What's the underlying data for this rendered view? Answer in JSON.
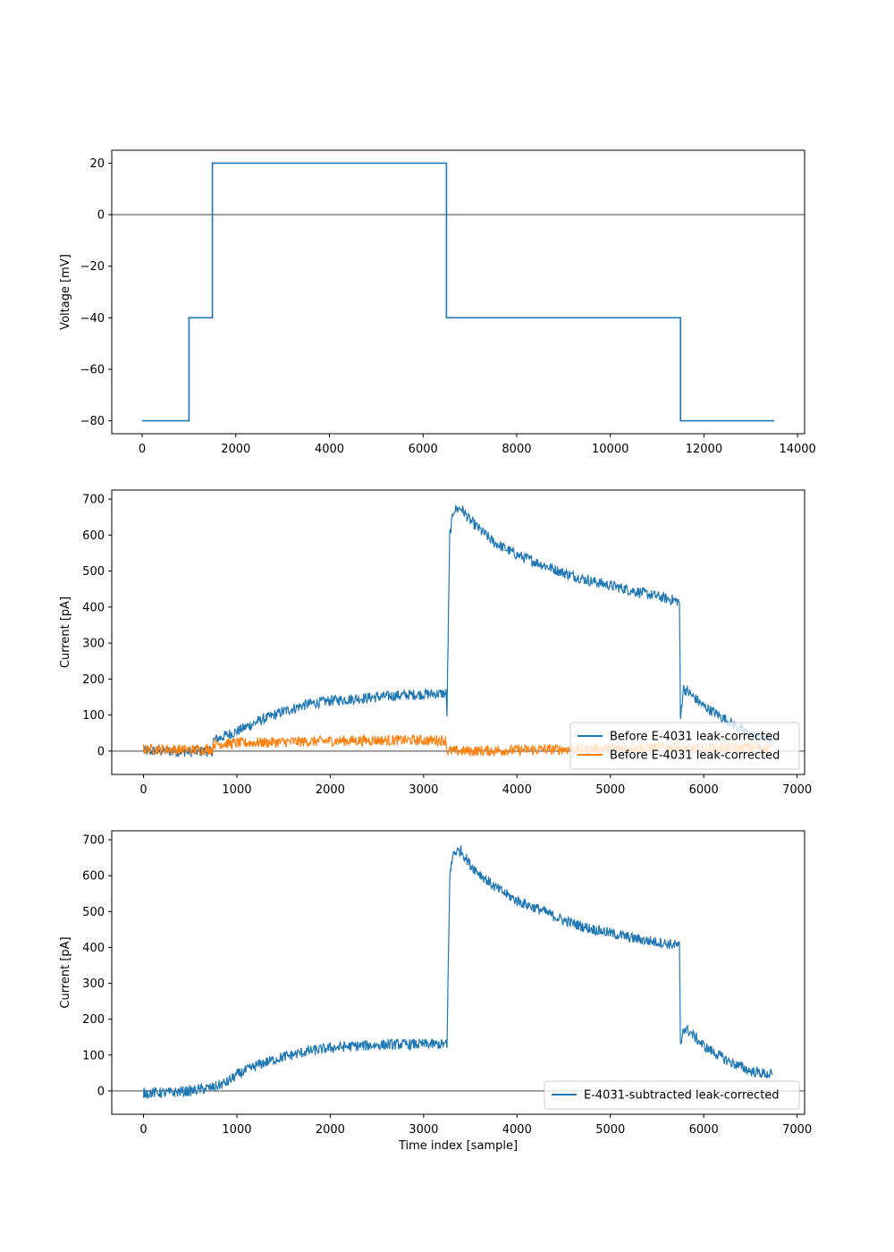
{
  "colors": {
    "blue": "#1f77b4",
    "orange": "#ff7f0e",
    "zero_line": "#808080"
  },
  "chart_data": [
    {
      "type": "line",
      "ylabel": "Voltage [mV]",
      "xlabel": "",
      "xlim": [
        -650,
        14150
      ],
      "ylim": [
        -85,
        25
      ],
      "xticks": [
        0,
        2000,
        4000,
        6000,
        8000,
        10000,
        12000,
        14000
      ],
      "xtick_labels": [
        "0",
        "2000",
        "4000",
        "6000",
        "8000",
        "10000",
        "12000",
        "14000"
      ],
      "yticks": [
        -80,
        -60,
        -40,
        -20,
        0,
        20
      ],
      "ytick_labels": [
        "−80",
        "−60",
        "−40",
        "−20",
        "0",
        "20"
      ],
      "zero_line": true,
      "legend": null,
      "series": [
        {
          "color": "#1f77b4",
          "step": true,
          "x": [
            0,
            1000,
            1000,
            1500,
            1500,
            6500,
            6500,
            11500,
            11500,
            13500
          ],
          "y": [
            -80,
            -80,
            -40,
            -40,
            20,
            20,
            -40,
            -40,
            -80,
            -80
          ]
        }
      ]
    },
    {
      "type": "line",
      "ylabel": "Current [pA]",
      "xlabel": "",
      "xlim": [
        -340,
        7080
      ],
      "ylim": [
        -65,
        725
      ],
      "xticks": [
        0,
        1000,
        2000,
        3000,
        4000,
        5000,
        6000,
        7000
      ],
      "xtick_labels": [
        "0",
        "1000",
        "2000",
        "3000",
        "4000",
        "5000",
        "6000",
        "7000"
      ],
      "yticks": [
        0,
        100,
        200,
        300,
        400,
        500,
        600,
        700
      ],
      "ytick_labels": [
        "0",
        "100",
        "200",
        "300",
        "400",
        "500",
        "600",
        "700"
      ],
      "zero_line": true,
      "legend": {
        "placement": "lower-right",
        "entries": [
          "Before E-4031 leak-corrected",
          "Before E-4031 leak-corrected"
        ]
      },
      "series": [
        {
          "name": "Before E-4031 leak-corrected",
          "color": "#1f77b4",
          "x": [
            0,
            250,
            500,
            740,
            750,
            1000,
            1250,
            1500,
            1750,
            2000,
            2250,
            2500,
            2750,
            3000,
            3240,
            3250,
            3280,
            3320,
            3400,
            3500,
            3750,
            4000,
            4250,
            4500,
            4750,
            5000,
            5250,
            5500,
            5740,
            5750,
            5780,
            5850,
            6000,
            6250,
            6500,
            6740
          ],
          "y": [
            0,
            0,
            -2,
            0,
            30,
            55,
            85,
            110,
            130,
            140,
            145,
            150,
            155,
            158,
            160,
            105,
            600,
            670,
            675,
            640,
            580,
            545,
            520,
            495,
            475,
            460,
            445,
            430,
            415,
            85,
            175,
            160,
            125,
            85,
            45,
            35
          ]
        },
        {
          "name": "Before E-4031 leak-corrected",
          "color": "#ff7f0e",
          "x": [
            0,
            250,
            500,
            740,
            750,
            1000,
            1500,
            2000,
            2500,
            3000,
            3240,
            3250,
            3500,
            4000,
            4500,
            5000,
            5500,
            5740,
            5750,
            6000,
            6500,
            6740
          ],
          "y": [
            5,
            5,
            3,
            5,
            20,
            22,
            25,
            28,
            30,
            30,
            30,
            0,
            0,
            3,
            5,
            8,
            10,
            12,
            5,
            8,
            10,
            10
          ]
        }
      ]
    },
    {
      "type": "line",
      "ylabel": "Current [pA]",
      "xlabel": "Time index [sample]",
      "xlim": [
        -340,
        7080
      ],
      "ylim": [
        -65,
        725
      ],
      "xticks": [
        0,
        1000,
        2000,
        3000,
        4000,
        5000,
        6000,
        7000
      ],
      "xtick_labels": [
        "0",
        "1000",
        "2000",
        "3000",
        "4000",
        "5000",
        "6000",
        "7000"
      ],
      "yticks": [
        0,
        100,
        200,
        300,
        400,
        500,
        600,
        700
      ],
      "ytick_labels": [
        "0",
        "100",
        "200",
        "300",
        "400",
        "500",
        "600",
        "700"
      ],
      "zero_line": true,
      "legend": {
        "placement": "lower-right",
        "entries": [
          "E-4031-subtracted leak-corrected"
        ]
      },
      "series": [
        {
          "name": "E-4031-subtracted leak-corrected",
          "color": "#1f77b4",
          "x": [
            0,
            250,
            500,
            750,
            900,
            1000,
            1250,
            1500,
            1750,
            2000,
            2250,
            2500,
            2750,
            3000,
            3240,
            3250,
            3280,
            3320,
            3400,
            3500,
            3750,
            4000,
            4250,
            4500,
            4750,
            5000,
            5250,
            5500,
            5740,
            5750,
            5780,
            5850,
            6000,
            6250,
            6500,
            6740
          ],
          "y": [
            -5,
            -5,
            0,
            10,
            25,
            45,
            75,
            95,
            110,
            120,
            125,
            128,
            130,
            130,
            130,
            120,
            600,
            665,
            670,
            630,
            570,
            530,
            505,
            475,
            455,
            440,
            425,
            415,
            405,
            120,
            175,
            165,
            125,
            85,
            55,
            45
          ]
        }
      ]
    }
  ]
}
